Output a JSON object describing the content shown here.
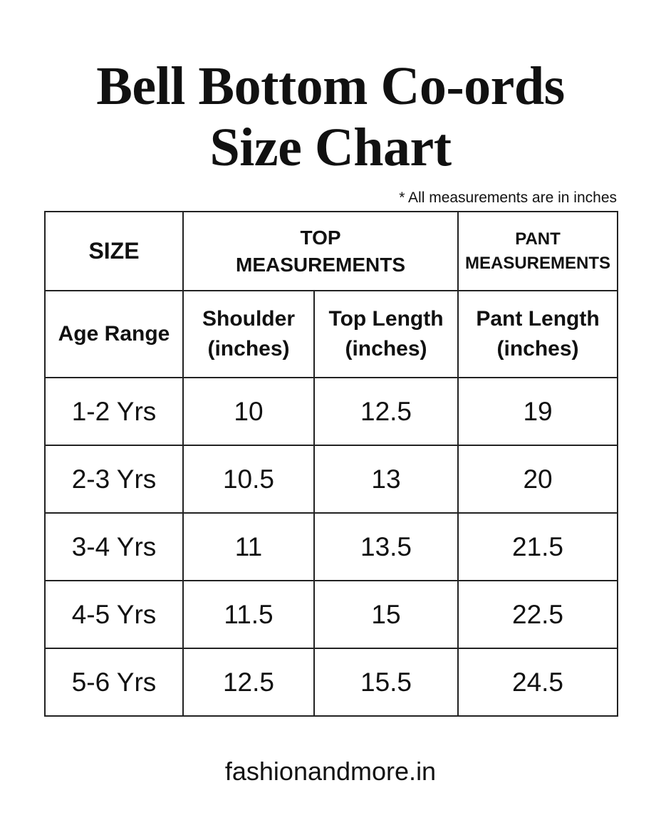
{
  "header": {
    "title_lines": [
      "Bell Bottom Co-ords",
      "Size Chart"
    ],
    "note": "* All measurements are in inches"
  },
  "table": {
    "group_header": [
      [
        "SIZE"
      ],
      [
        "TOP",
        "MEASUREMENTS"
      ],
      [
        "PANT",
        "MEASUREMENTS"
      ]
    ],
    "columns": [
      [
        "Age Range"
      ],
      [
        "Shoulder",
        "(inches)"
      ],
      [
        "Top Length",
        "(inches)"
      ],
      [
        "Pant Length",
        "(inches)"
      ]
    ],
    "rows": [
      [
        "1-2 Yrs",
        10,
        12.5,
        19
      ],
      [
        "2-3 Yrs",
        10.5,
        13,
        20
      ],
      [
        "3-4 Yrs",
        11,
        13.5,
        21.5
      ],
      [
        "4-5 Yrs",
        11.5,
        15,
        22.5
      ],
      [
        "5-6 Yrs",
        12.5,
        15.5,
        24.5
      ]
    ]
  },
  "footer": {
    "site": "fashionandmore.in"
  }
}
